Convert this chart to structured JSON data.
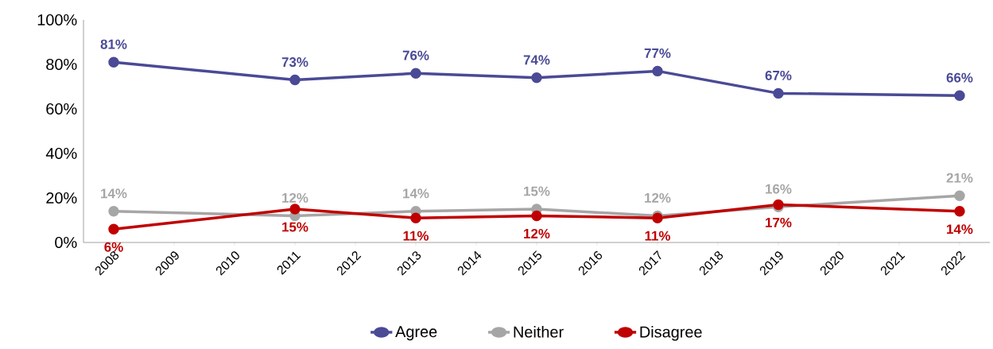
{
  "chart_data": {
    "type": "line",
    "categories": [
      "2008",
      "2009",
      "2010",
      "2011",
      "2012",
      "2013",
      "2014",
      "2015",
      "2016",
      "2017",
      "2018",
      "2019",
      "2020",
      "2021",
      "2022"
    ],
    "series": [
      {
        "name": "Agree",
        "color": "#4a4a96",
        "values": [
          81,
          null,
          null,
          73,
          null,
          76,
          null,
          74,
          null,
          77,
          null,
          67,
          null,
          null,
          66
        ],
        "value_labels": [
          "81%",
          null,
          null,
          "73%",
          null,
          "76%",
          null,
          "74%",
          null,
          "77%",
          null,
          "67%",
          null,
          null,
          "66%"
        ]
      },
      {
        "name": "Neither",
        "color": "#a6a6a6",
        "values": [
          14,
          null,
          null,
          12,
          null,
          14,
          null,
          15,
          null,
          12,
          null,
          16,
          null,
          null,
          21
        ],
        "value_labels": [
          "14%",
          null,
          null,
          "12%",
          null,
          "14%",
          null,
          "15%",
          null,
          "12%",
          null,
          "16%",
          null,
          null,
          "21%"
        ]
      },
      {
        "name": "Disagree",
        "color": "#c00000",
        "values": [
          6,
          null,
          null,
          15,
          null,
          11,
          null,
          12,
          null,
          11,
          null,
          17,
          null,
          null,
          14
        ],
        "value_labels": [
          "6%",
          null,
          null,
          "15%",
          null,
          "11%",
          null,
          "12%",
          null,
          "11%",
          null,
          "17%",
          null,
          null,
          "14%"
        ]
      }
    ],
    "ylim": [
      0,
      100
    ],
    "yticks": [
      {
        "value": 0,
        "label": "0%"
      },
      {
        "value": 20,
        "label": "20%"
      },
      {
        "value": 40,
        "label": "40%"
      },
      {
        "value": 60,
        "label": "60%"
      },
      {
        "value": 80,
        "label": "80%"
      },
      {
        "value": 100,
        "label": "100%"
      }
    ],
    "grid": false,
    "legend": "bottom",
    "marker": "circle"
  }
}
